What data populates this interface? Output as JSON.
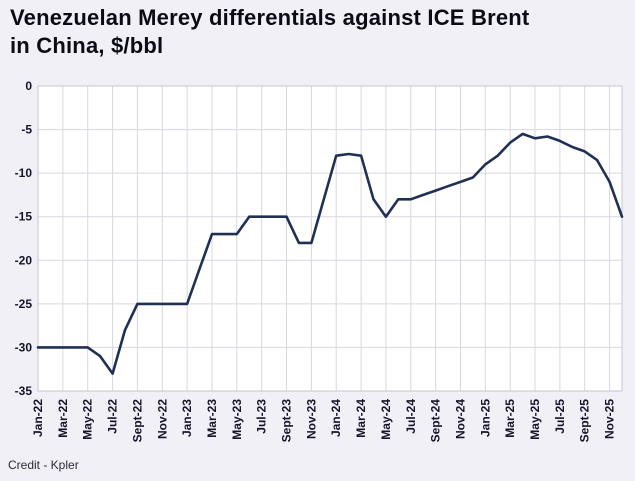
{
  "title_line1": "Venezuelan Merey differentials against ICE Brent",
  "title_line2": "in China, $/bbl",
  "credit": "Credit - Kpler",
  "chart_data": {
    "type": "line",
    "title": "Venezuelan Merey differentials against ICE Brent in China, $/bbl",
    "ylabel": "",
    "xlabel": "",
    "ylim": [
      -35,
      0
    ],
    "grid": true,
    "legend": "none",
    "line_color": "#1f3054",
    "grid_color": "#d8d7e2",
    "border_color": "#c6c5d4",
    "plot_bg": "#ffffff",
    "tick_color": "#15152a",
    "y_ticks": [
      0,
      -5,
      -10,
      -15,
      -20,
      -25,
      -30,
      -35
    ],
    "x_tick_labels": [
      "Jan-22",
      "Mar-22",
      "May-22",
      "Jul-22",
      "Sept-22",
      "Nov-22",
      "Jan-23",
      "Mar-23",
      "May-23",
      "Jul-23",
      "Sept-23",
      "Nov-23",
      "Jan-24",
      "Mar-24",
      "May-24",
      "Jul-24",
      "Sept-24",
      "Nov-24",
      "Jan-25",
      "Mar-25",
      "May-25",
      "Jul-25",
      "Sept-25",
      "Nov-25"
    ],
    "months": [
      "Jan-22",
      "Feb-22",
      "Mar-22",
      "Apr-22",
      "May-22",
      "Jun-22",
      "Jul-22",
      "Aug-22",
      "Sep-22",
      "Oct-22",
      "Nov-22",
      "Dec-22",
      "Jan-23",
      "Feb-23",
      "Mar-23",
      "Apr-23",
      "May-23",
      "Jun-23",
      "Jul-23",
      "Aug-23",
      "Sep-23",
      "Oct-23",
      "Nov-23",
      "Dec-23",
      "Jan-24",
      "Feb-24",
      "Mar-24",
      "Apr-24",
      "May-24",
      "Jun-24",
      "Jul-24",
      "Aug-24",
      "Sep-24",
      "Oct-24",
      "Nov-24",
      "Dec-24",
      "Jan-25",
      "Feb-25",
      "Mar-25",
      "Apr-25",
      "May-25",
      "Jun-25",
      "Jul-25",
      "Aug-25",
      "Sep-25",
      "Oct-25",
      "Nov-25",
      "Dec-25"
    ],
    "values": [
      -30,
      -30,
      -30,
      -30,
      -30,
      -31,
      -33,
      -28,
      -25,
      -25,
      -25,
      -25,
      -25,
      -21,
      -17,
      -17,
      -17,
      -15,
      -15,
      -15,
      -15,
      -18,
      -18,
      -13,
      -8,
      -7.8,
      -8,
      -13,
      -15,
      -13,
      -13,
      -12.5,
      -12,
      -11.5,
      -11,
      -10.5,
      -9,
      -8,
      -6.5,
      -5.5,
      -6,
      -5.8,
      -6.3,
      -7,
      -7.5,
      -8.5,
      -11,
      -15
    ]
  }
}
